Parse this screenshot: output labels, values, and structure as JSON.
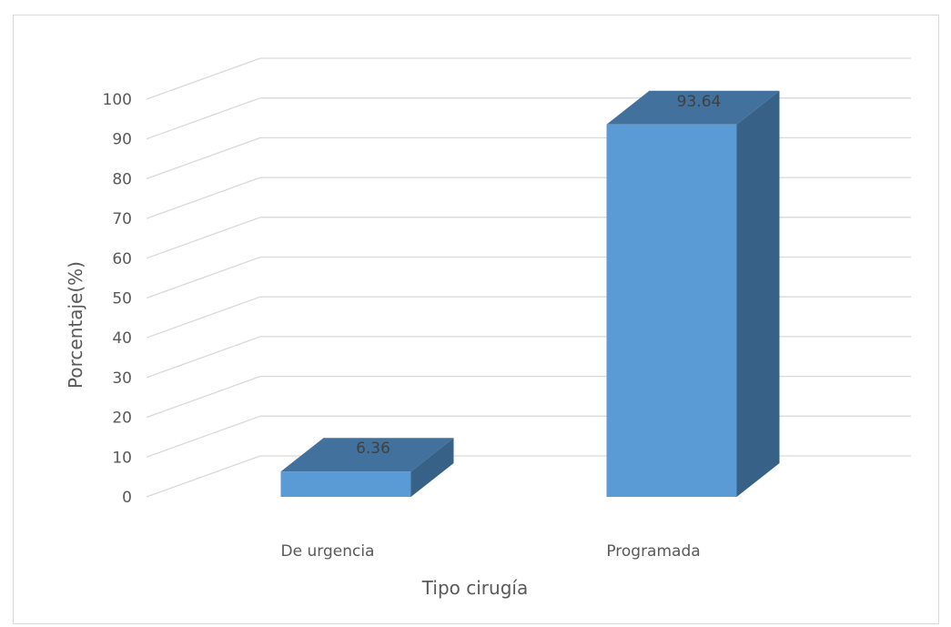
{
  "chart_data": {
    "type": "bar",
    "style": "3d-column",
    "categories": [
      "De urgencia",
      "Programada"
    ],
    "series": [
      {
        "values": [
          6.36,
          93.64
        ]
      }
    ],
    "data_labels": [
      "6.36",
      "93.64"
    ],
    "xlabel": "Tipo cirugía",
    "ylabel": "Porcentaje(%)",
    "ylim": [
      0,
      100
    ],
    "yticks": [
      0,
      10,
      20,
      30,
      40,
      50,
      60,
      70,
      80,
      90,
      100
    ],
    "grid": true,
    "legend": "none"
  },
  "colors": {
    "bar_front": "#5b9bd5",
    "bar_top": "#41719c",
    "bar_side": "#386187",
    "gridline": "#d9d9d9",
    "text": "#595959",
    "data_label": "#404040"
  }
}
